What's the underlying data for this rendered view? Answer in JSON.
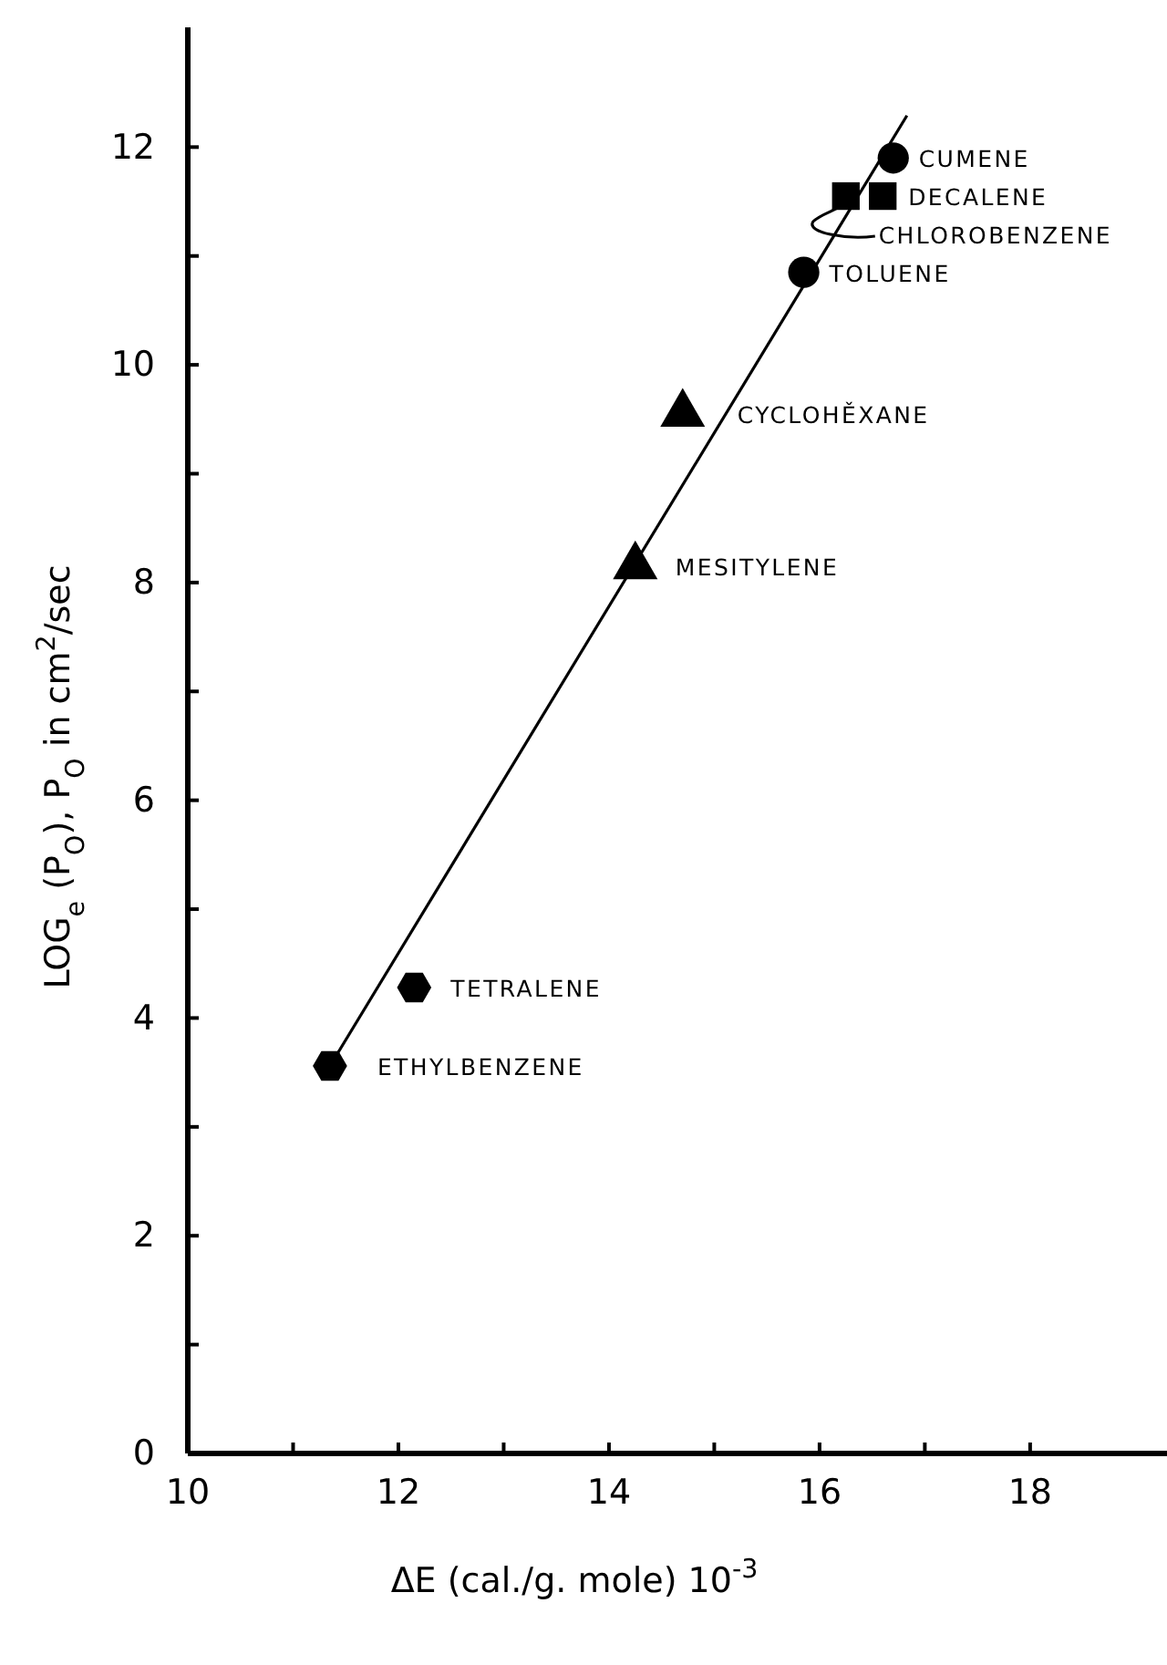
{
  "chart_data": {
    "type": "scatter",
    "xlabel": "ΔE (cal./g. mole) 10$^{-3}$",
    "ylabel": "LOG$_{e}$ (P$_{O}$), P$_{O}$ in cm$^{2}$/sec",
    "xlim": [
      10,
      19.3
    ],
    "ylim": [
      0,
      13.1
    ],
    "xticks": [
      10,
      {
        "value": 11,
        "label": null
      },
      12,
      {
        "value": 13,
        "label": null
      },
      14,
      {
        "value": 15,
        "label": null
      },
      16,
      {
        "value": 17,
        "label": null
      },
      18
    ],
    "yticks": [
      0,
      {
        "value": 1,
        "label": null
      },
      2,
      {
        "value": 3,
        "label": null
      },
      4,
      {
        "value": 5,
        "label": null
      },
      6,
      {
        "value": 7,
        "label": null
      },
      8,
      {
        "value": 9,
        "label": null
      },
      10,
      {
        "value": 11,
        "label": null
      },
      12
    ],
    "grid": false,
    "series": [
      {
        "name": "CUMENE",
        "color": "#000000",
        "marker": "circle",
        "x": [
          16.7
        ],
        "values": [
          11.9
        ]
      },
      {
        "name": "DECALENE",
        "color": "#000000",
        "marker": "square",
        "x": [
          16.6
        ],
        "values": [
          11.55
        ]
      },
      {
        "name": "CHLOROBENZENE",
        "color": "#000000",
        "marker": "square",
        "x": [
          16.25
        ],
        "values": [
          11.55
        ]
      },
      {
        "name": "TOLUENE",
        "color": "#000000",
        "marker": "circle",
        "x": [
          15.85
        ],
        "values": [
          10.85
        ]
      },
      {
        "name": "CYCLOHĚXANE",
        "color": "#000000",
        "marker": "triangle",
        "x": [
          14.7
        ],
        "values": [
          9.55
        ]
      },
      {
        "name": "MESITYLENE",
        "color": "#000000",
        "marker": "triangle",
        "x": [
          14.25
        ],
        "values": [
          8.15
        ]
      },
      {
        "name": "TETRALENE",
        "color": "#000000",
        "x": [
          12.15
        ],
        "values": [
          4.28
        ]
      },
      {
        "name": "ETHYLBENZENE",
        "color": "#000000",
        "x": [
          11.35
        ],
        "values": [
          3.56
        ]
      },
      {
        "type": "line",
        "color": "#000000",
        "marker": "none",
        "line_style": "solid",
        "x": [
          11.35,
          16.83
        ],
        "values": [
          3.56,
          12.29
        ]
      }
    ]
  }
}
